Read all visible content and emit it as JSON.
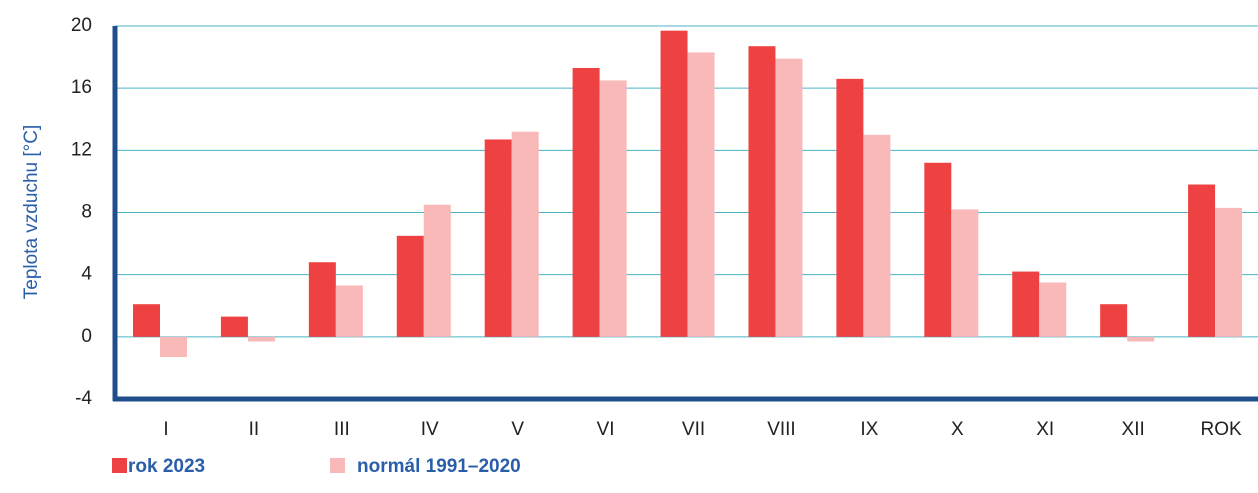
{
  "chart_data": {
    "type": "bar",
    "y_label": "Teplota vzduchu [°C]",
    "categories": [
      "I",
      "II",
      "III",
      "IV",
      "V",
      "VI",
      "VII",
      "VIII",
      "IX",
      "X",
      "XI",
      "XII",
      "ROK"
    ],
    "series": [
      {
        "name": "rok 2023",
        "color": "#ee4242",
        "values": [
          2.1,
          1.3,
          4.8,
          6.5,
          12.7,
          17.3,
          19.7,
          18.7,
          16.6,
          11.2,
          4.2,
          2.1,
          9.8
        ]
      },
      {
        "name": "normál 1991–2020",
        "color": "#f9b9b9",
        "values": [
          -1.3,
          -0.3,
          3.3,
          8.5,
          13.2,
          16.5,
          18.3,
          17.9,
          13.0,
          8.2,
          3.5,
          -0.3,
          8.3
        ]
      }
    ],
    "ylim": [
      -4,
      20
    ],
    "yticks": [
      -4,
      0,
      4,
      8,
      12,
      16,
      20
    ],
    "grid": true
  }
}
